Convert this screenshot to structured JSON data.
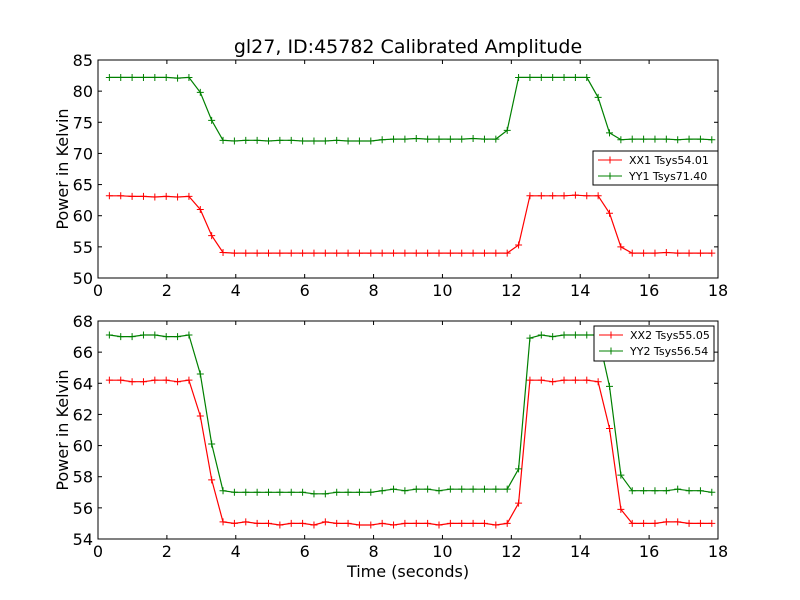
{
  "chart_data": [
    {
      "type": "line",
      "title": "gl27, ID:45782 Calibrated Amplitude",
      "xlabel": "",
      "ylabel": "Power in Kelvin",
      "xlim": [
        0,
        18
      ],
      "ylim": [
        50,
        85
      ],
      "xticks": [
        0,
        2,
        4,
        6,
        8,
        10,
        12,
        14,
        16,
        18
      ],
      "yticks": [
        50,
        55,
        60,
        65,
        70,
        75,
        80,
        85
      ],
      "grid": false,
      "legend": "right",
      "x": [
        0.33,
        0.66,
        0.99,
        1.32,
        1.65,
        1.98,
        2.31,
        2.64,
        2.97,
        3.3,
        3.63,
        3.96,
        4.29,
        4.62,
        4.95,
        5.28,
        5.61,
        5.94,
        6.27,
        6.6,
        6.93,
        7.26,
        7.59,
        7.92,
        8.25,
        8.58,
        8.91,
        9.24,
        9.57,
        9.9,
        10.23,
        10.56,
        10.89,
        11.22,
        11.55,
        11.88,
        12.21,
        12.54,
        12.87,
        13.2,
        13.53,
        13.86,
        14.19,
        14.52,
        14.85,
        15.18,
        15.51,
        15.84,
        16.17,
        16.5,
        16.83,
        17.16,
        17.49,
        17.82
      ],
      "series": [
        {
          "name": "XX1 Tsys54.01",
          "color": "#ff0000",
          "values": [
            63.2,
            63.2,
            63.1,
            63.1,
            63.0,
            63.1,
            63.0,
            63.1,
            61.0,
            56.8,
            54.1,
            54.0,
            54.0,
            54.0,
            54.0,
            54.0,
            54.0,
            54.0,
            54.0,
            54.0,
            54.0,
            54.0,
            54.0,
            54.0,
            54.0,
            54.0,
            54.0,
            54.0,
            54.0,
            54.0,
            54.0,
            54.0,
            54.0,
            54.0,
            54.0,
            54.0,
            55.3,
            63.2,
            63.2,
            63.2,
            63.2,
            63.3,
            63.2,
            63.2,
            60.4,
            55.0,
            54.0,
            54.0,
            54.0,
            54.1,
            54.0,
            54.0,
            54.0,
            54.0
          ]
        },
        {
          "name": "YY1 Tsys71.40",
          "color": "#008000",
          "values": [
            82.2,
            82.2,
            82.2,
            82.2,
            82.2,
            82.2,
            82.1,
            82.2,
            79.8,
            75.3,
            72.1,
            72.0,
            72.1,
            72.1,
            72.0,
            72.1,
            72.1,
            72.0,
            72.0,
            72.0,
            72.1,
            72.0,
            72.0,
            72.0,
            72.2,
            72.3,
            72.3,
            72.4,
            72.3,
            72.3,
            72.3,
            72.3,
            72.4,
            72.3,
            72.3,
            73.7,
            82.2,
            82.2,
            82.2,
            82.2,
            82.2,
            82.2,
            82.2,
            79.0,
            73.3,
            72.2,
            72.3,
            72.3,
            72.3,
            72.3,
            72.2,
            72.3,
            72.3,
            72.2
          ]
        }
      ]
    },
    {
      "type": "line",
      "title": "",
      "xlabel": "Time (seconds)",
      "ylabel": "Power in Kelvin",
      "xlim": [
        0,
        18
      ],
      "ylim": [
        54,
        68
      ],
      "xticks": [
        0,
        2,
        4,
        6,
        8,
        10,
        12,
        14,
        16,
        18
      ],
      "yticks": [
        54,
        56,
        58,
        60,
        62,
        64,
        66,
        68
      ],
      "grid": false,
      "legend": "top-right",
      "x": [
        0.33,
        0.66,
        0.99,
        1.32,
        1.65,
        1.98,
        2.31,
        2.64,
        2.97,
        3.3,
        3.63,
        3.96,
        4.29,
        4.62,
        4.95,
        5.28,
        5.61,
        5.94,
        6.27,
        6.6,
        6.93,
        7.26,
        7.59,
        7.92,
        8.25,
        8.58,
        8.91,
        9.24,
        9.57,
        9.9,
        10.23,
        10.56,
        10.89,
        11.22,
        11.55,
        11.88,
        12.21,
        12.54,
        12.87,
        13.2,
        13.53,
        13.86,
        14.19,
        14.52,
        14.85,
        15.18,
        15.51,
        15.84,
        16.17,
        16.5,
        16.83,
        17.16,
        17.49,
        17.82
      ],
      "series": [
        {
          "name": "XX2 Tsys55.05",
          "color": "#ff0000",
          "values": [
            64.2,
            64.2,
            64.1,
            64.1,
            64.2,
            64.2,
            64.1,
            64.2,
            61.9,
            57.8,
            55.1,
            55.0,
            55.1,
            55.0,
            55.0,
            54.9,
            55.0,
            55.0,
            54.9,
            55.1,
            55.0,
            55.0,
            54.9,
            54.9,
            55.0,
            54.9,
            55.0,
            55.0,
            55.0,
            54.9,
            55.0,
            55.0,
            55.0,
            55.0,
            54.9,
            55.0,
            56.3,
            64.2,
            64.2,
            64.1,
            64.2,
            64.2,
            64.2,
            64.1,
            61.1,
            55.9,
            55.0,
            55.0,
            55.0,
            55.1,
            55.1,
            55.0,
            55.0,
            55.0
          ]
        },
        {
          "name": "YY2 Tsys56.54",
          "color": "#008000",
          "values": [
            67.1,
            67.0,
            67.0,
            67.1,
            67.1,
            67.0,
            67.0,
            67.1,
            64.6,
            60.1,
            57.1,
            57.0,
            57.0,
            57.0,
            57.0,
            57.0,
            57.0,
            57.0,
            56.9,
            56.9,
            57.0,
            57.0,
            57.0,
            57.0,
            57.1,
            57.2,
            57.1,
            57.2,
            57.2,
            57.1,
            57.2,
            57.2,
            57.2,
            57.2,
            57.2,
            57.2,
            58.5,
            66.9,
            67.1,
            67.0,
            67.1,
            67.1,
            67.1,
            67.1,
            63.8,
            58.1,
            57.1,
            57.1,
            57.1,
            57.1,
            57.2,
            57.1,
            57.1,
            57.0
          ]
        }
      ]
    }
  ]
}
